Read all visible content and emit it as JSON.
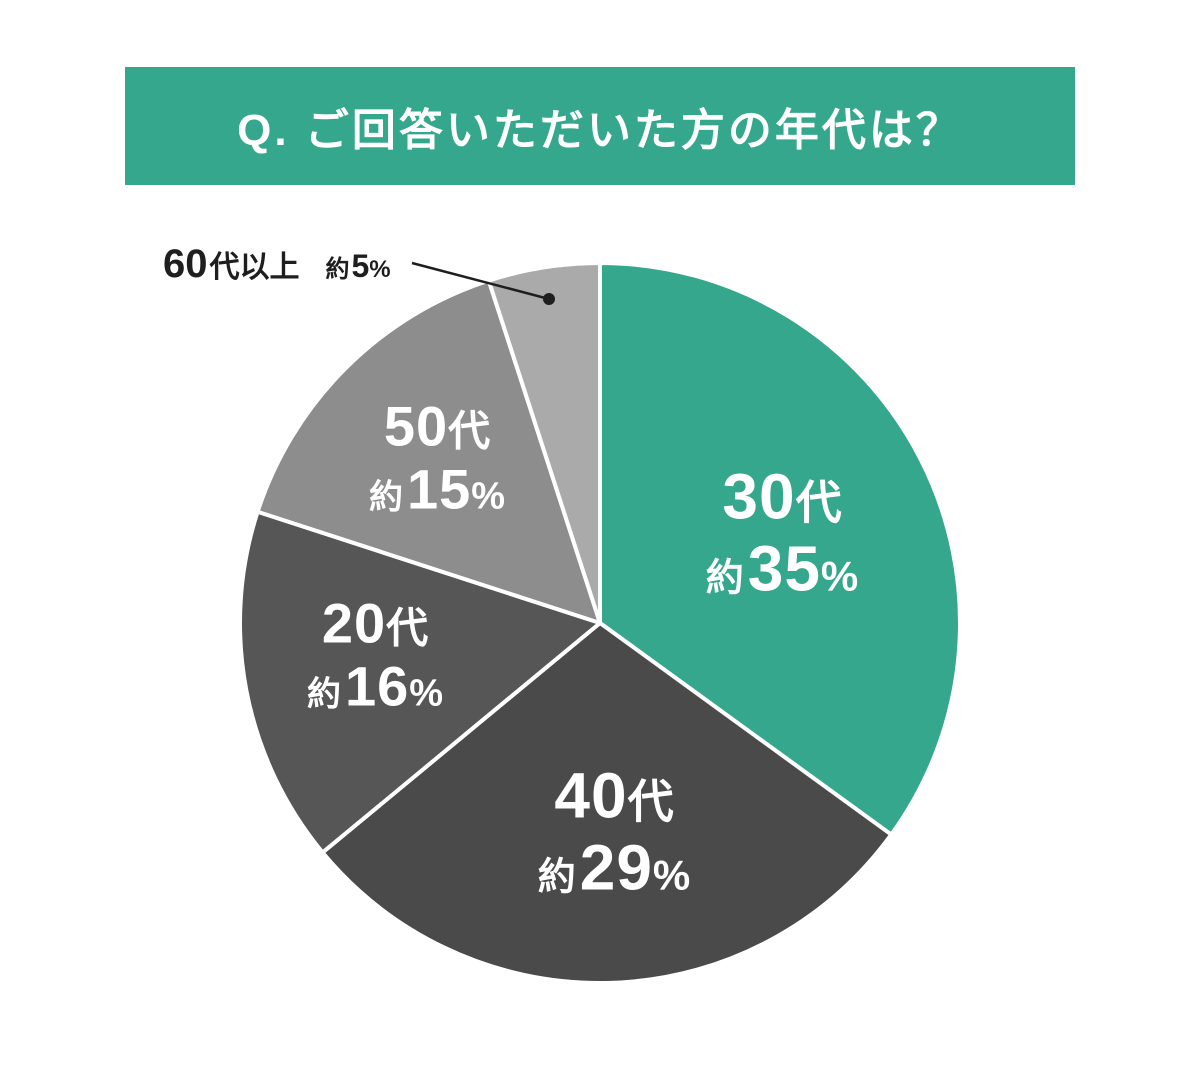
{
  "header": {
    "title": "Q. ご回答いただいた方の年代は？",
    "bg_color": "#35a78c",
    "text_color": "#ffffff"
  },
  "chart_data": {
    "type": "pie",
    "title": "Q. ご回答いただいた方の年代は？",
    "unit": "%",
    "total": 100,
    "start_angle": "12-oclock",
    "direction": "clockwise",
    "legend_position": "none",
    "separator_color": "#ffffff",
    "segments": [
      {
        "label": "30代",
        "value_label": "約35%",
        "value": 35,
        "color": "#35a78c",
        "label_num": "30",
        "label_unit": "代",
        "value_prefix": "約",
        "value_num": "35",
        "value_unit": "%"
      },
      {
        "label": "40代",
        "value_label": "約29%",
        "value": 29,
        "color": "#4a4a4a",
        "label_num": "40",
        "label_unit": "代",
        "value_prefix": "約",
        "value_num": "29",
        "value_unit": "%"
      },
      {
        "label": "20代",
        "value_label": "約16%",
        "value": 16,
        "color": "#565656",
        "label_num": "20",
        "label_unit": "代",
        "value_prefix": "約",
        "value_num": "16",
        "value_unit": "%"
      },
      {
        "label": "50代",
        "value_label": "約15%",
        "value": 15,
        "color": "#8d8d8d",
        "label_num": "50",
        "label_unit": "代",
        "value_prefix": "約",
        "value_num": "15",
        "value_unit": "%"
      },
      {
        "label": "60代以上",
        "value_label": "約5%",
        "value": 5,
        "color": "#aaaaaa",
        "label_num": "60",
        "label_unit": "代以上",
        "value_prefix": "約",
        "value_num": "5",
        "value_unit": "%"
      }
    ],
    "callout": {
      "segment": "60代以上",
      "text": "60代以上 約5%",
      "text_color": "#1e1e1e"
    }
  }
}
